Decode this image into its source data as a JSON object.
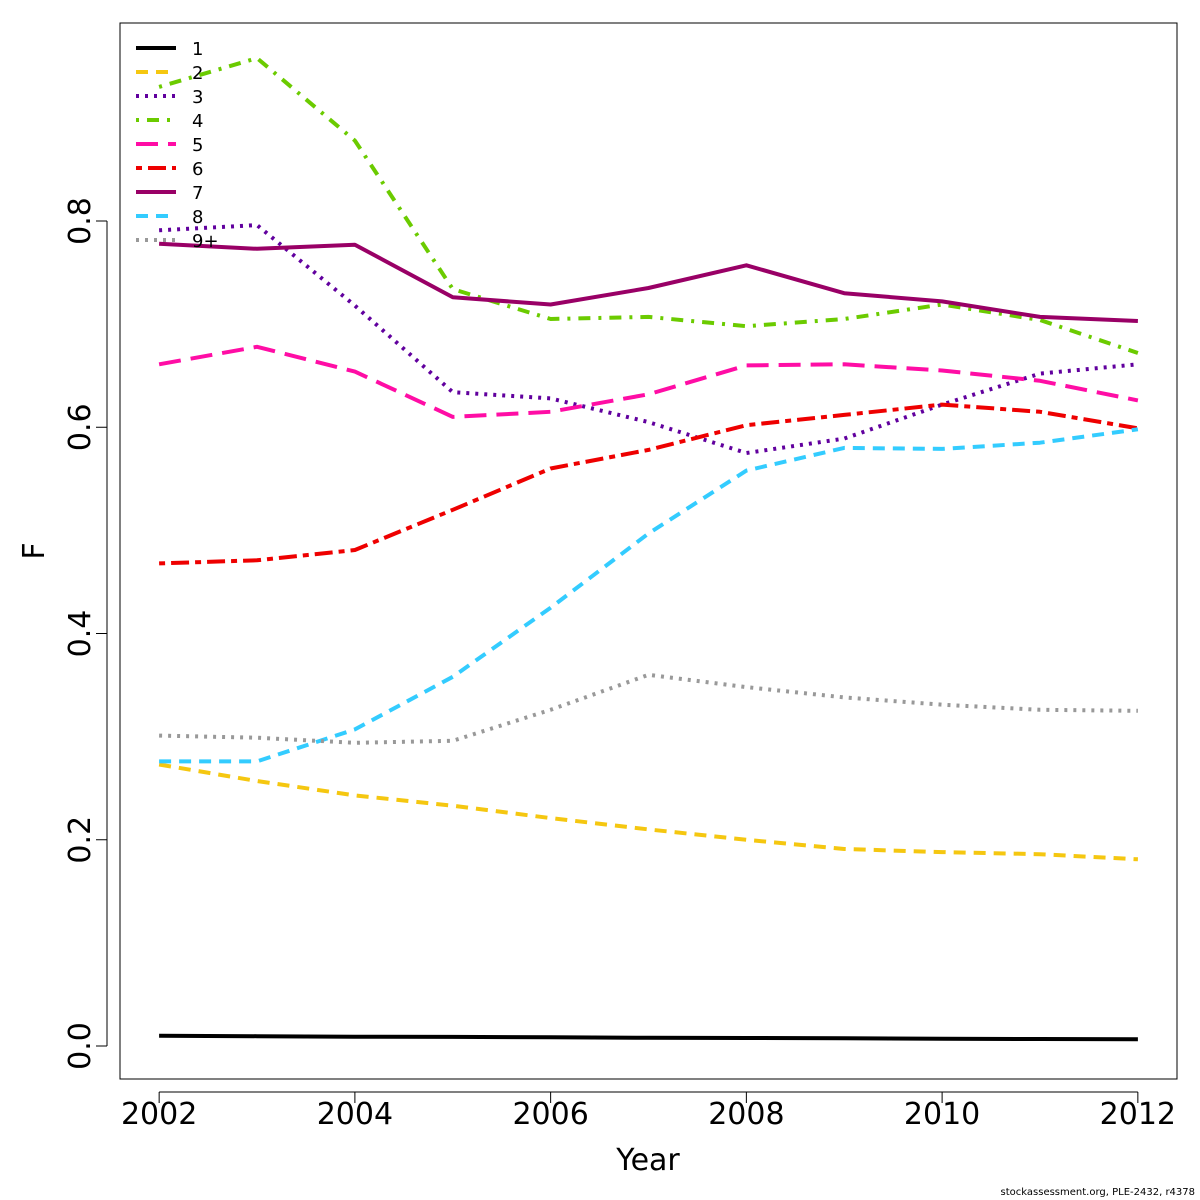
{
  "chart_data": {
    "type": "line",
    "xlabel": "Year",
    "ylabel": "F",
    "xlim": [
      2001.6,
      2012.4
    ],
    "ylim": [
      -0.032,
      0.992
    ],
    "x_ticks": [
      2002,
      2004,
      2006,
      2008,
      2010,
      2012
    ],
    "y_ticks": [
      0.0,
      0.2,
      0.4,
      0.6,
      0.8
    ],
    "y_tick_labels": [
      "0.0",
      "0.2",
      "0.4",
      "0.6",
      "0.8"
    ],
    "x": [
      2002,
      2003,
      2004,
      2005,
      2006,
      2007,
      2008,
      2009,
      2010,
      2011,
      2012
    ],
    "legend_position": "top-left",
    "series": [
      {
        "name": "1",
        "color": "#000000",
        "dash": "solid",
        "values": [
          0.01,
          0.0095,
          0.009,
          0.0088,
          0.0085,
          0.008,
          0.0078,
          0.0075,
          0.007,
          0.0068,
          0.0065
        ]
      },
      {
        "name": "2",
        "color": "#F5C710",
        "dash": "dashed",
        "values": [
          0.273,
          0.257,
          0.243,
          0.233,
          0.221,
          0.21,
          0.2,
          0.191,
          0.188,
          0.186,
          0.181
        ]
      },
      {
        "name": "3",
        "color": "#61009E",
        "dash": "dotted",
        "values": [
          0.791,
          0.796,
          0.718,
          0.634,
          0.628,
          0.605,
          0.575,
          0.589,
          0.622,
          0.652,
          0.661
        ]
      },
      {
        "name": "4",
        "color": "#6BCB00",
        "dash": "dotdash",
        "values": [
          0.93,
          0.958,
          0.878,
          0.734,
          0.705,
          0.707,
          0.698,
          0.705,
          0.719,
          0.704,
          0.672
        ]
      },
      {
        "name": "5",
        "color": "#FF0DA5",
        "dash": "longdash",
        "values": [
          0.661,
          0.678,
          0.654,
          0.61,
          0.615,
          0.632,
          0.66,
          0.661,
          0.655,
          0.645,
          0.626
        ]
      },
      {
        "name": "6",
        "color": "#EE0000",
        "dash": "twodash",
        "values": [
          0.468,
          0.471,
          0.481,
          0.52,
          0.56,
          0.578,
          0.602,
          0.612,
          0.622,
          0.615,
          0.599
        ]
      },
      {
        "name": "7",
        "color": "#990066",
        "dash": "solid",
        "values": [
          0.778,
          0.773,
          0.777,
          0.726,
          0.719,
          0.735,
          0.757,
          0.73,
          0.722,
          0.707,
          0.703
        ]
      },
      {
        "name": "8",
        "color": "#33CCFF",
        "dash": "dashed",
        "values": [
          0.276,
          0.276,
          0.307,
          0.358,
          0.425,
          0.497,
          0.558,
          0.58,
          0.579,
          0.585,
          0.598
        ]
      },
      {
        "name": "9+",
        "color": "#999999",
        "dash": "dotted",
        "values": [
          0.301,
          0.299,
          0.294,
          0.296,
          0.326,
          0.36,
          0.348,
          0.338,
          0.331,
          0.326,
          0.325
        ]
      }
    ]
  },
  "footer": {
    "text": "stockassessment.org, PLE-2432, r4378"
  }
}
